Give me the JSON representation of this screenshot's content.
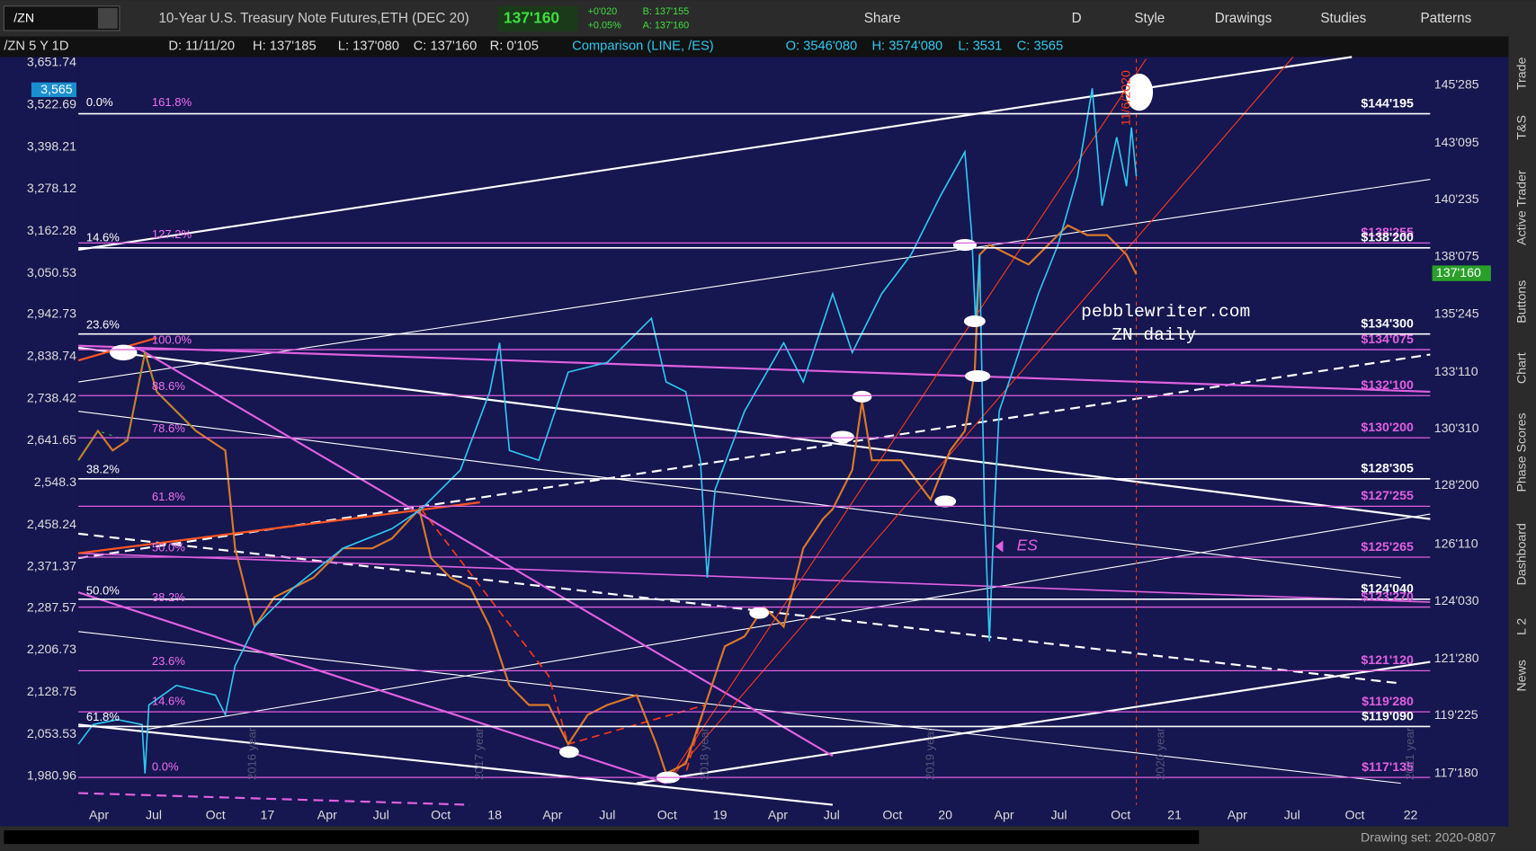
{
  "toolbar": {
    "symbol": "/ZN",
    "description": "10-Year U.S. Treasury Note Futures,ETH (DEC 20)",
    "last": "137'160",
    "change": "+0'020",
    "change_pct": "+0.05%",
    "bid": "B: 137'155",
    "ask": "A: 137'160",
    "buttons": [
      "Share",
      "D",
      "Style",
      "Drawings",
      "Studies",
      "Patterns"
    ]
  },
  "info_bar": [
    "/ZN 5 Y 1D",
    "D: 11/11/20",
    "H: 137'185",
    "L: 137'080",
    "C: 137'160",
    "R: 0'105",
    "Comparison (LINE, /ES)",
    "O: 3546'080",
    "H: 3574'080",
    "L: 3531",
    "C: 3565"
  ],
  "left_axis": {
    "labels": [
      "3,651.74",
      "3,522.69",
      "3,398.21",
      "3,278.12",
      "3,162.28",
      "3,050.53",
      "2,942.73",
      "2,838.74",
      "2,738.42",
      "2,641.65",
      "2,548.3",
      "2,458.24",
      "2,371.37",
      "2,287.57",
      "2,206.73",
      "2,128.75",
      "2,053.53",
      "1,980.96"
    ],
    "current": "3,565"
  },
  "right_axis": {
    "labels": [
      "145'285",
      "143'095",
      "140'235",
      "138'075",
      "135'245",
      "133'110",
      "130'310",
      "128'200",
      "126'110",
      "124'030",
      "121'280",
      "119'225",
      "117'180"
    ],
    "current": "137'160"
  },
  "x_axis": {
    "labels": [
      "Apr",
      "Jul",
      "Oct",
      "17",
      "Apr",
      "Jul",
      "Oct",
      "18",
      "Apr",
      "Jul",
      "Oct",
      "19",
      "Apr",
      "Jul",
      "Oct",
      "20",
      "Apr",
      "Jul",
      "Oct",
      "21",
      "Apr",
      "Jul",
      "Oct",
      "22"
    ]
  },
  "fib_labels": [
    "0.0%",
    "161.8%",
    "14.6%",
    "127.2%",
    "23.6%",
    "100.0%",
    "88.6%",
    "78.6%",
    "38.2%",
    "61.8%",
    "50.0%",
    "50.0%",
    "38.2%",
    "23.6%",
    "14.6%",
    "61.8%",
    "0.0%"
  ],
  "levels": [
    {
      "label": "$144'195",
      "color": "#ffffff"
    },
    {
      "label": "$138'255",
      "color": "#e060e0"
    },
    {
      "label": "$138'200",
      "color": "#ffffff"
    },
    {
      "label": "$134'300",
      "color": "#ffffff"
    },
    {
      "label": "$134'075",
      "color": "#e060e0"
    },
    {
      "label": "$132'100",
      "color": "#e060e0"
    },
    {
      "label": "$130'200",
      "color": "#e060e0"
    },
    {
      "label": "$128'305",
      "color": "#ffffff"
    },
    {
      "label": "$127'255",
      "color": "#e060e0"
    },
    {
      "label": "$125'265",
      "color": "#e060e0"
    },
    {
      "label": "$124'040",
      "color": "#ffffff"
    },
    {
      "label": "$123'270",
      "color": "#e060e0"
    },
    {
      "label": "$121'120",
      "color": "#e060e0"
    },
    {
      "label": "$119'280",
      "color": "#e060e0"
    },
    {
      "label": "$119'090",
      "color": "#ffffff"
    },
    {
      "label": "$117'135",
      "color": "#e060e0"
    }
  ],
  "annotations": {
    "site": "pebblewriter.com",
    "chart": "ZN daily",
    "es": "ES",
    "date": "11/6/2020",
    "years": [
      "2016 year",
      "2017 year",
      "2018 year",
      "2019 year",
      "2020 year",
      "2021 year"
    ]
  },
  "sidebar": {
    "tabs": [
      "Trade",
      "T&S",
      "Active Trader",
      "Buttons",
      "Chart",
      "Phase Scores",
      "Dashboard",
      "L 2",
      "News"
    ]
  },
  "status": {
    "drawing_set": "Drawing set: 2020-0807"
  }
}
